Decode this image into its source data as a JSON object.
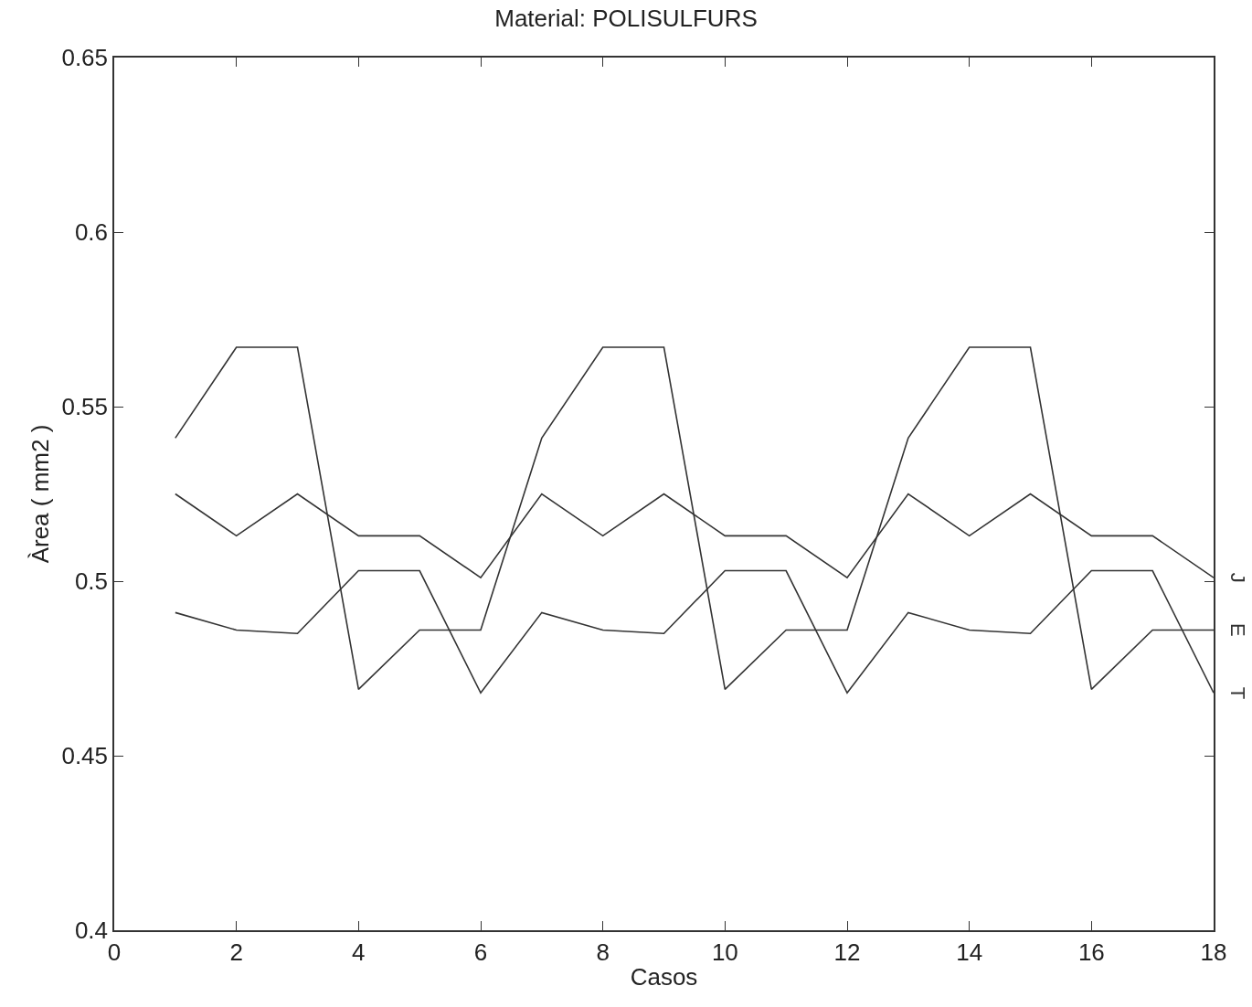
{
  "chart_data": {
    "type": "line",
    "title": "Material: POLISULFURS",
    "xlabel": "Casos",
    "ylabel": "Àrea ( mm2 )",
    "x": [
      1,
      2,
      3,
      4,
      5,
      6,
      7,
      8,
      9,
      10,
      11,
      12,
      13,
      14,
      15,
      16,
      17,
      18
    ],
    "series": [
      {
        "name": "J",
        "color": "#333333",
        "values": [
          0.525,
          0.513,
          0.525,
          0.513,
          0.513,
          0.501,
          0.525,
          0.513,
          0.525,
          0.513,
          0.513,
          0.501,
          0.525,
          0.513,
          0.525,
          0.513,
          0.513,
          0.501
        ]
      },
      {
        "name": "E",
        "color": "#333333",
        "values": [
          0.541,
          0.567,
          0.567,
          0.469,
          0.486,
          0.486,
          0.541,
          0.567,
          0.567,
          0.469,
          0.486,
          0.486,
          0.541,
          0.567,
          0.567,
          0.469,
          0.486,
          0.486
        ]
      },
      {
        "name": "T",
        "color": "#333333",
        "values": [
          0.491,
          0.486,
          0.485,
          0.503,
          0.503,
          0.468,
          0.491,
          0.486,
          0.485,
          0.503,
          0.503,
          0.468,
          0.491,
          0.486,
          0.485,
          0.503,
          0.503,
          0.468
        ]
      }
    ],
    "xlim": [
      0,
      18
    ],
    "xticks": [
      0,
      2,
      4,
      6,
      8,
      10,
      12,
      14,
      16,
      18
    ],
    "ylim": [
      0.4,
      0.65
    ],
    "yticks": [
      0.4,
      0.45,
      0.5,
      0.55,
      0.6,
      0.65
    ],
    "grid": false,
    "marker": "none",
    "line_style": "solid"
  }
}
